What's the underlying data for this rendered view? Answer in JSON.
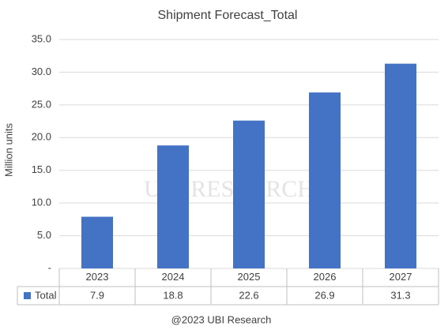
{
  "chart_data": {
    "type": "bar",
    "title": "Shipment Forecast_Total",
    "y_label": "Million units",
    "categories": [
      "2023",
      "2024",
      "2025",
      "2026",
      "2027"
    ],
    "series": [
      {
        "name": "Total",
        "color": "#4472c4",
        "values": [
          7.9,
          18.8,
          22.6,
          26.9,
          31.3
        ]
      }
    ],
    "ylim": [
      0,
      35
    ],
    "yticks": [
      {
        "value": 0,
        "label": "-"
      },
      {
        "value": 5,
        "label": "5.0"
      },
      {
        "value": 10,
        "label": "10.0"
      },
      {
        "value": 15,
        "label": "15.0"
      },
      {
        "value": 20,
        "label": "20.0"
      },
      {
        "value": 25,
        "label": "25.0"
      },
      {
        "value": 30,
        "label": "30.0"
      },
      {
        "value": 35,
        "label": "35.0"
      }
    ],
    "grid": true,
    "data_table": true,
    "watermark": "UBI RESEARCH",
    "source": "@2023 UBI Research"
  }
}
